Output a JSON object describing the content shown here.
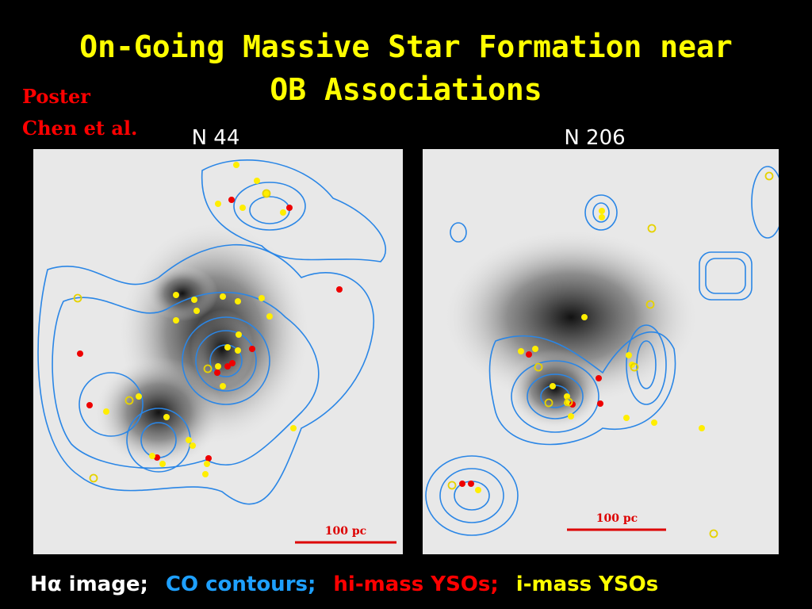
{
  "title": {
    "lines": [
      "On-Going Massive Star Formation near",
      "OB Associations"
    ],
    "color": "#ffff00"
  },
  "poster": {
    "lines": [
      "Poster",
      "Chen et al."
    ],
    "color": "#ff0000"
  },
  "panels": [
    {
      "label": "N 44",
      "scale": "100 pc"
    },
    {
      "label": "N 206",
      "scale": "100 pc"
    }
  ],
  "legend": [
    {
      "text": "Hα image;",
      "color": "#ffffff"
    },
    {
      "text": "CO contours;",
      "color": "#1ea0ff"
    },
    {
      "text": "hi-mass YSOs;",
      "color": "#ff0000"
    },
    {
      "text": "i-mass YSOs",
      "color": "#ffff00"
    }
  ]
}
